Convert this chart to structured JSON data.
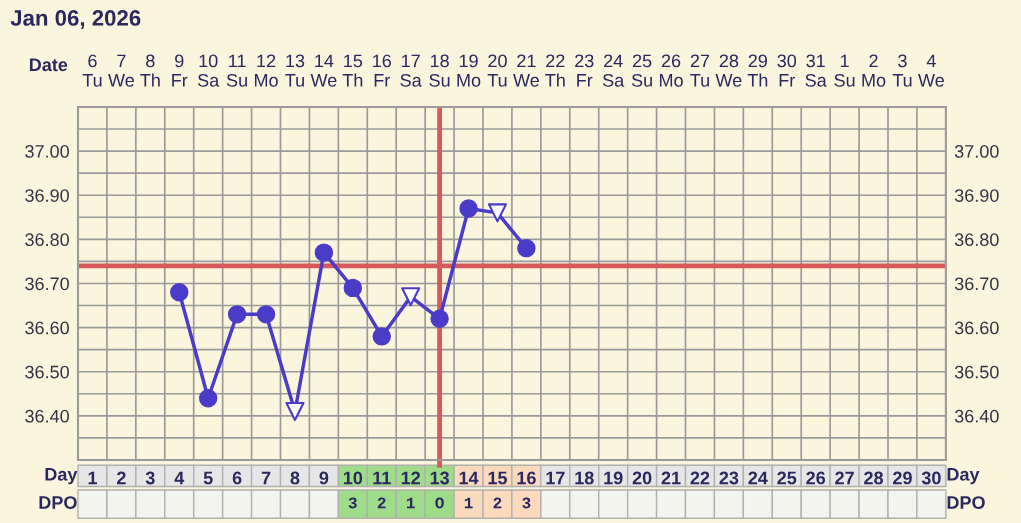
{
  "chart_data": {
    "type": "line",
    "title": "Jan 06, 2026",
    "xlabel": "Day",
    "x2label": "Date",
    "categories": [
      "1",
      "2",
      "3",
      "4",
      "5",
      "6",
      "7",
      "8",
      "9",
      "10",
      "11",
      "12",
      "13",
      "14",
      "15",
      "16",
      "17",
      "18",
      "19",
      "20",
      "21",
      "22",
      "23",
      "24",
      "25",
      "26",
      "27",
      "28",
      "29",
      "30"
    ],
    "x2lim": [
      "2026-01-05T12:00",
      "2026-02-04T12:00"
    ],
    "x2ticks": [
      {
        "value": "2026-01-06",
        "label": "6\nTu"
      },
      {
        "value": "2026-01-07",
        "label": "7\nWe"
      },
      {
        "value": "2026-01-08",
        "label": "8\nTh"
      },
      {
        "value": "2026-01-09",
        "label": "9\nFr"
      },
      {
        "value": "2026-01-10",
        "label": "10\nSa"
      },
      {
        "value": "2026-01-11",
        "label": "11\nSu"
      },
      {
        "value": "2026-01-12",
        "label": "12\nMo"
      },
      {
        "value": "2026-01-13",
        "label": "13\nTu"
      },
      {
        "value": "2026-01-14",
        "label": "14\nWe"
      },
      {
        "value": "2026-01-15",
        "label": "15\nTh"
      },
      {
        "value": "2026-01-16",
        "label": "16\nFr"
      },
      {
        "value": "2026-01-17",
        "label": "17\nSa"
      },
      {
        "value": "2026-01-18",
        "label": "18\nSu"
      },
      {
        "value": "2026-01-19",
        "label": "19\nMo"
      },
      {
        "value": "2026-01-20",
        "label": "20\nTu"
      },
      {
        "value": "2026-01-21",
        "label": "21\nWe"
      },
      {
        "value": "2026-01-22",
        "label": "22\nTh"
      },
      {
        "value": "2026-01-23",
        "label": "23\nFr"
      },
      {
        "value": "2026-01-24",
        "label": "24\nSa"
      },
      {
        "value": "2026-01-25",
        "label": "25\nSu"
      },
      {
        "value": "2026-01-26",
        "label": "26\nMo"
      },
      {
        "value": "2026-01-27",
        "label": "27\nTu"
      },
      {
        "value": "2026-01-28",
        "label": "28\nWe"
      },
      {
        "value": "2026-01-29",
        "label": "29\nTh"
      },
      {
        "value": "2026-01-30",
        "label": "30\nFr"
      },
      {
        "value": "2026-01-31",
        "label": "31\nSa"
      },
      {
        "value": "2026-02-01",
        "label": "1\nSu"
      },
      {
        "value": "2026-02-02",
        "label": "2\nMo"
      },
      {
        "value": "2026-02-03",
        "label": "3\nTu"
      },
      {
        "value": "2026-02-04",
        "label": "4\nWe"
      }
    ],
    "ylim": [
      36.3,
      37.1
    ],
    "yticks": [
      {
        "value": 36.35,
        "label": null
      },
      {
        "value": 36.4,
        "label": "36.40"
      },
      {
        "value": 36.45,
        "label": null
      },
      {
        "value": 36.5,
        "label": "36.50"
      },
      {
        "value": 36.55,
        "label": null
      },
      {
        "value": 36.6,
        "label": "36.60"
      },
      {
        "value": 36.65,
        "label": null
      },
      {
        "value": 36.7,
        "label": "36.70"
      },
      {
        "value": 36.75,
        "label": null
      },
      {
        "value": 36.8,
        "label": "36.80"
      },
      {
        "value": 36.85,
        "label": null
      },
      {
        "value": 36.9,
        "label": "36.90"
      },
      {
        "value": 36.95,
        "label": null
      },
      {
        "value": 37.0,
        "label": "37.00"
      },
      {
        "value": 37.05,
        "label": null
      }
    ],
    "y2lim": [
      36.3,
      37.1
    ],
    "y2ticks": [
      {
        "value": 36.4,
        "label": "36.40"
      },
      {
        "value": 36.5,
        "label": "36.50"
      },
      {
        "value": 36.6,
        "label": "36.60"
      },
      {
        "value": 36.7,
        "label": "36.70"
      },
      {
        "value": 36.8,
        "label": "36.80"
      },
      {
        "value": 36.9,
        "label": "36.90"
      },
      {
        "value": 37.0,
        "label": "37.00"
      }
    ],
    "grid": true,
    "series": [
      {
        "color": "#4a3cc8",
        "marker": "none",
        "values": [
          null,
          null,
          null,
          36.68,
          36.44,
          36.63,
          36.63,
          36.41,
          36.77,
          36.69,
          36.58,
          36.67,
          36.62,
          36.87,
          36.86,
          36.78,
          null,
          null,
          null,
          null,
          null,
          null,
          null,
          null,
          null,
          null,
          null,
          null,
          null,
          null
        ]
      },
      {
        "type": "scatter",
        "color": "#4a3cc8",
        "marker": "circle",
        "values": [
          null,
          null,
          null,
          36.68,
          36.44,
          36.63,
          36.63,
          null,
          36.77,
          36.69,
          36.58,
          null,
          36.62,
          36.87,
          null,
          36.78,
          null,
          null,
          null,
          null,
          null,
          null,
          null,
          null,
          null,
          null,
          null,
          null,
          null,
          null
        ]
      },
      {
        "type": "scatter",
        "color": "#4a3cc8",
        "marker": "triangle",
        "values": [
          null,
          null,
          null,
          null,
          null,
          null,
          null,
          36.41,
          null,
          null,
          null,
          36.67,
          null,
          null,
          36.86,
          null,
          null,
          null,
          null,
          null,
          null,
          null,
          null,
          null,
          null,
          null,
          null,
          null,
          null,
          null
        ]
      }
    ],
    "ref_lines": [
      {
        "axis": "y",
        "value": 36.74,
        "color": "#d65a5a"
      },
      {
        "axis": "x",
        "value": "13",
        "color": "#d65a5a"
      }
    ],
    "annotations": [
      "DPO",
      "3 2 1 O 1 2 3"
    ]
  }
}
